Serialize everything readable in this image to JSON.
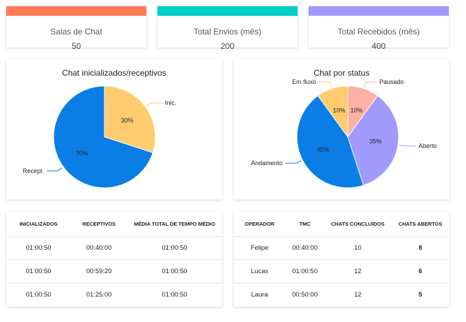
{
  "stats": [
    {
      "label": "Salas de Chat",
      "value": "50",
      "color": "#ff7a59"
    },
    {
      "label": "Total Envios (mês)",
      "value": "200",
      "color": "#00cfc8"
    },
    {
      "label": "Total Recebidos (mês)",
      "value": "400",
      "color": "#a29bfe"
    }
  ],
  "chart_data": [
    {
      "type": "pie",
      "title": "Chat inicializados/receptivos",
      "slices": [
        {
          "label": "Inic.",
          "value": 30,
          "display": "30%",
          "color": "#fecb6e"
        },
        {
          "label": "Recept.",
          "value": 70,
          "display": "70%",
          "color": "#0a7ee5"
        }
      ]
    },
    {
      "type": "pie",
      "title": "Chat por status",
      "slices": [
        {
          "label": "Pausado",
          "value": 10,
          "display": "10%",
          "color": "#ffb1a3"
        },
        {
          "label": "Aberto",
          "value": 35,
          "display": "35%",
          "color": "#a29bfe"
        },
        {
          "label": "Andamento",
          "value": 45,
          "display": "45%",
          "color": "#0a7ee5"
        },
        {
          "label": "Em fluxo",
          "value": 10,
          "display": "10%",
          "color": "#fecb6e"
        }
      ]
    }
  ],
  "table_times": {
    "headers": [
      "INICIALIZADOS",
      "RECEPTIVOS",
      "MÉDIA TOTAL DE TEMPO MÉDIO"
    ],
    "rows": [
      [
        "01:00:50",
        "00:40:00",
        "01:00:50"
      ],
      [
        "01:00:50",
        "00:59:20",
        "01:00:50"
      ],
      [
        "01:00:50",
        "01:25:00",
        "01:00:50"
      ]
    ]
  },
  "table_operators": {
    "headers": [
      "OPERADOR",
      "TMC",
      "CHATS CONCLUÍDOS",
      "CHATS ABERTOS"
    ],
    "rows": [
      [
        "Felipe",
        "00:40:00",
        "10",
        "8"
      ],
      [
        "Lucas",
        "01:00:50",
        "12",
        "6"
      ],
      [
        "Laura",
        "00:50:00",
        "12",
        "5"
      ]
    ]
  }
}
